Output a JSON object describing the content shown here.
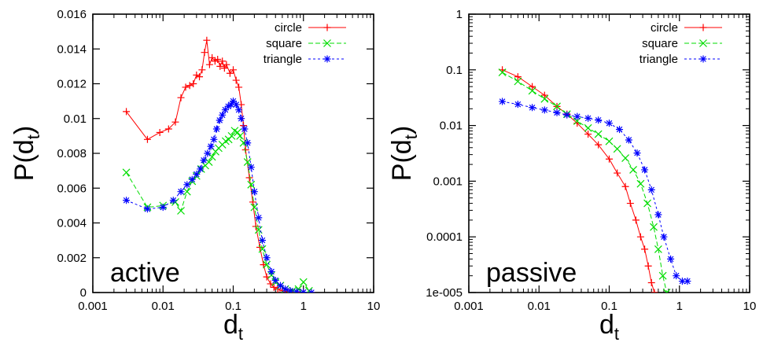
{
  "chart_data": [
    {
      "type": "line",
      "panel_label": "active",
      "xlabel": "d",
      "xlabel_sub": "t",
      "ylabel": "P(d",
      "ylabel_sub": "t",
      "ylabel_close": ")",
      "x_scale": "log",
      "y_scale": "linear",
      "xlim": [
        0.001,
        10
      ],
      "ylim": [
        0,
        0.016
      ],
      "x_ticks": [
        0.001,
        0.01,
        0.1,
        1,
        10
      ],
      "x_tick_labels": [
        "0.001",
        "0.01",
        "0.1",
        "1",
        "10"
      ],
      "y_ticks": [
        0,
        0.002,
        0.004,
        0.006,
        0.008,
        0.01,
        0.012,
        0.014,
        0.016
      ],
      "y_tick_labels": [
        "0",
        "0.002",
        "0.004",
        "0.006",
        "0.008",
        "0.01",
        "0.012",
        "0.014",
        "0.016"
      ],
      "legend_position": "top-right",
      "series": [
        {
          "name": "circle",
          "color": "#ff0000",
          "marker": "plus",
          "line": "solid",
          "x": [
            0.003,
            0.006,
            0.009,
            0.012,
            0.015,
            0.018,
            0.021,
            0.024,
            0.027,
            0.03,
            0.033,
            0.036,
            0.039,
            0.042,
            0.046,
            0.05,
            0.055,
            0.06,
            0.065,
            0.07,
            0.075,
            0.08,
            0.09,
            0.1,
            0.11,
            0.12,
            0.13,
            0.14,
            0.15,
            0.17,
            0.19,
            0.21,
            0.24,
            0.27,
            0.3,
            0.34,
            0.38,
            0.43,
            0.5,
            0.6,
            0.8,
            1.0,
            1.3
          ],
          "y": [
            0.0104,
            0.0088,
            0.0092,
            0.0094,
            0.0098,
            0.0112,
            0.0118,
            0.0119,
            0.012,
            0.0125,
            0.0124,
            0.0128,
            0.0138,
            0.0145,
            0.0131,
            0.0135,
            0.0133,
            0.0134,
            0.013,
            0.0133,
            0.0129,
            0.0131,
            0.0126,
            0.0128,
            0.0122,
            0.0118,
            0.0108,
            0.0096,
            0.0082,
            0.0066,
            0.0052,
            0.0038,
            0.0026,
            0.0016,
            0.0009,
            0.0005,
            0.0003,
            0.0002,
            0.0001,
            5e-05,
            2e-05,
            1e-05,
            0.0
          ]
        },
        {
          "name": "square",
          "color": "#00dd00",
          "marker": "cross",
          "line": "dashed",
          "x": [
            0.003,
            0.006,
            0.01,
            0.015,
            0.018,
            0.022,
            0.026,
            0.03,
            0.035,
            0.04,
            0.045,
            0.05,
            0.056,
            0.062,
            0.07,
            0.078,
            0.086,
            0.095,
            0.105,
            0.115,
            0.125,
            0.14,
            0.16,
            0.18,
            0.2,
            0.23,
            0.26,
            0.3,
            0.35,
            0.4,
            0.47,
            0.55,
            0.7,
            0.85,
            1.0,
            1.2
          ],
          "y": [
            0.0069,
            0.0049,
            0.005,
            0.0052,
            0.0047,
            0.0058,
            0.0064,
            0.0067,
            0.0071,
            0.0073,
            0.0075,
            0.0078,
            0.0081,
            0.0083,
            0.0085,
            0.0087,
            0.0088,
            0.009,
            0.0093,
            0.0092,
            0.009,
            0.0086,
            0.0075,
            0.0062,
            0.0049,
            0.0036,
            0.0025,
            0.0016,
            0.001,
            0.0006,
            0.0004,
            0.0002,
            0.0001,
            0.0002,
            0.0006,
            0.0001
          ]
        },
        {
          "name": "triangle",
          "color": "#0000ff",
          "marker": "star",
          "line": "dotted",
          "x": [
            0.003,
            0.006,
            0.01,
            0.014,
            0.018,
            0.022,
            0.026,
            0.03,
            0.034,
            0.038,
            0.043,
            0.048,
            0.053,
            0.058,
            0.064,
            0.07,
            0.077,
            0.085,
            0.093,
            0.1,
            0.11,
            0.12,
            0.13,
            0.145,
            0.16,
            0.18,
            0.2,
            0.23,
            0.26,
            0.3,
            0.35,
            0.4,
            0.47,
            0.55,
            0.65,
            0.8,
            1.0,
            1.3
          ],
          "y": [
            0.0053,
            0.0048,
            0.0049,
            0.0053,
            0.0058,
            0.0062,
            0.0065,
            0.0068,
            0.0071,
            0.0076,
            0.008,
            0.0084,
            0.0088,
            0.0094,
            0.0099,
            0.0102,
            0.0105,
            0.0107,
            0.0108,
            0.011,
            0.0108,
            0.0105,
            0.01,
            0.0094,
            0.0086,
            0.0072,
            0.0058,
            0.0043,
            0.003,
            0.002,
            0.0012,
            0.0007,
            0.0004,
            0.0002,
            0.0001,
            5e-05,
            2e-05,
            0.0
          ]
        }
      ]
    },
    {
      "type": "line",
      "panel_label": "passive",
      "xlabel": "d",
      "xlabel_sub": "t",
      "ylabel": "P(d",
      "ylabel_sub": "t",
      "ylabel_close": ")",
      "x_scale": "log",
      "y_scale": "log",
      "xlim": [
        0.001,
        10
      ],
      "ylim": [
        1e-05,
        1
      ],
      "x_ticks": [
        0.001,
        0.01,
        0.1,
        1,
        10
      ],
      "x_tick_labels": [
        "0.001",
        "0.01",
        "0.1",
        "1",
        "10"
      ],
      "y_ticks": [
        1e-05,
        0.0001,
        0.001,
        0.01,
        0.1,
        1
      ],
      "y_tick_labels": [
        "1e-005",
        "0.0001",
        "0.001",
        "0.01",
        "0.1",
        "1"
      ],
      "legend_position": "top-right",
      "series": [
        {
          "name": "circle",
          "color": "#ff0000",
          "marker": "plus",
          "line": "solid",
          "x": [
            0.003,
            0.005,
            0.008,
            0.012,
            0.018,
            0.025,
            0.035,
            0.05,
            0.07,
            0.1,
            0.13,
            0.17,
            0.2,
            0.24,
            0.28,
            0.32,
            0.36,
            0.4,
            0.44
          ],
          "y": [
            0.1,
            0.075,
            0.05,
            0.035,
            0.022,
            0.016,
            0.011,
            0.007,
            0.0045,
            0.0025,
            0.0014,
            0.0008,
            0.0004,
            0.0002,
            0.0001,
            6e-05,
            3e-05,
            1.5e-05,
            1e-05
          ]
        },
        {
          "name": "square",
          "color": "#00dd00",
          "marker": "cross",
          "line": "dashed",
          "x": [
            0.003,
            0.005,
            0.008,
            0.012,
            0.018,
            0.025,
            0.035,
            0.05,
            0.07,
            0.1,
            0.13,
            0.17,
            0.22,
            0.28,
            0.35,
            0.43,
            0.5,
            0.58,
            0.66
          ],
          "y": [
            0.09,
            0.062,
            0.042,
            0.03,
            0.022,
            0.016,
            0.012,
            0.009,
            0.007,
            0.0052,
            0.0038,
            0.0026,
            0.0016,
            0.0009,
            0.0004,
            0.00015,
            6e-05,
            2e-05,
            1e-05
          ]
        },
        {
          "name": "triangle",
          "color": "#0000ff",
          "marker": "star",
          "line": "dotted",
          "x": [
            0.003,
            0.005,
            0.008,
            0.012,
            0.018,
            0.025,
            0.035,
            0.05,
            0.07,
            0.1,
            0.14,
            0.19,
            0.25,
            0.32,
            0.4,
            0.5,
            0.6,
            0.75,
            0.9,
            1.1,
            1.3
          ],
          "y": [
            0.027,
            0.024,
            0.021,
            0.019,
            0.017,
            0.0155,
            0.0145,
            0.0135,
            0.0125,
            0.011,
            0.0085,
            0.0055,
            0.0032,
            0.0016,
            0.0007,
            0.00025,
            0.0001,
            4e-05,
            2e-05,
            1.6e-05,
            1.6e-05
          ]
        }
      ]
    }
  ]
}
